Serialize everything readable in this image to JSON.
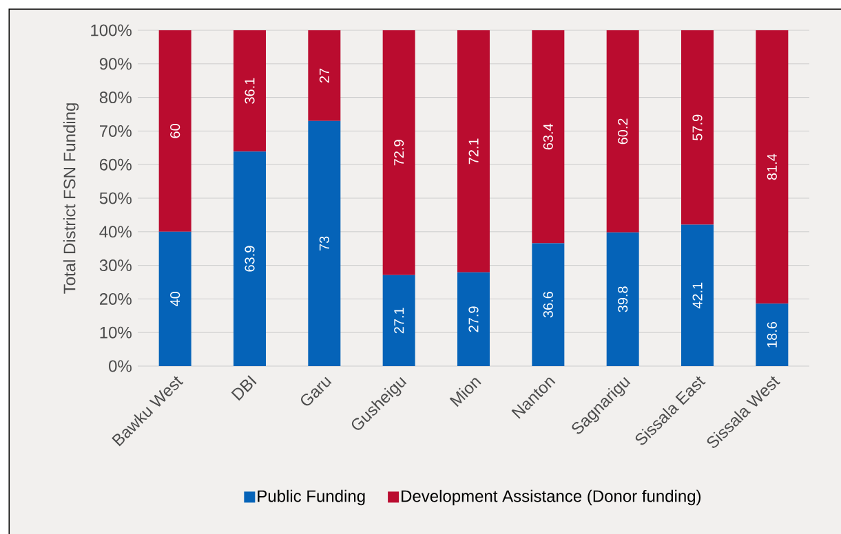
{
  "chart_data": {
    "type": "bar",
    "stacked": true,
    "data_labels": true,
    "ylabel": "Total District FSN Funding",
    "categories": [
      "Bawku West",
      "DBI",
      "Garu",
      "Gusheigu",
      "Mion",
      "Nanton",
      "Sagnarigu",
      "Sissala East",
      "Sissala West"
    ],
    "series": [
      {
        "name": "Public Funding",
        "color": "#0563b8",
        "values": [
          40,
          63.9,
          73,
          27.1,
          27.9,
          36.6,
          39.8,
          42.1,
          18.6
        ]
      },
      {
        "name": "Development Assistance (Donor funding)",
        "color": "#ba0c2f",
        "values": [
          60,
          36.1,
          27,
          72.9,
          72.1,
          63.4,
          60.2,
          57.9,
          81.4
        ]
      }
    ],
    "ylim": [
      0,
      100
    ],
    "yticks": [
      {
        "value": 0,
        "label": "0%"
      },
      {
        "value": 10,
        "label": "10%"
      },
      {
        "value": 20,
        "label": "20%"
      },
      {
        "value": 30,
        "label": "30%"
      },
      {
        "value": 40,
        "label": "40%"
      },
      {
        "value": 50,
        "label": "50%"
      },
      {
        "value": 60,
        "label": "60%"
      },
      {
        "value": 70,
        "label": "70%"
      },
      {
        "value": 80,
        "label": "80%"
      },
      {
        "value": 90,
        "label": "90%"
      },
      {
        "value": 100,
        "label": "100%"
      }
    ],
    "grid": "y",
    "legend": "bottom"
  }
}
